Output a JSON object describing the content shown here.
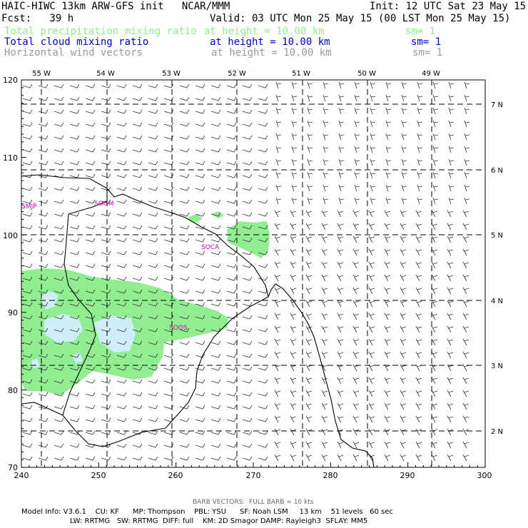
{
  "header": {
    "title": "HAIC-HIWC 13km ARW-GFS init   NCAR/MMM",
    "init": "Init: 12 UTC Sat 23 May 15",
    "fcst": "Fcst:   39 h",
    "valid": "Valid: 03 UTC Mon 25 May 15 (00 LST Mon 25 May 15)"
  },
  "fields": [
    {
      "name": "Total precipitation mixing ratio",
      "height": "at height = 10.00 km",
      "sm": "sm= 1",
      "color": "#90ee90"
    },
    {
      "name": "Total cloud mixing ratio",
      "height": "at height = 10.00 km",
      "sm": "sm= 1",
      "color": "#0000cc"
    },
    {
      "name": "Horizontal wind vectors",
      "height": "at height = 10.00 km",
      "sm": "sm= 1",
      "color": "#999999"
    }
  ],
  "map": {
    "lon_labels": [
      "55 W",
      "54 W",
      "53 W",
      "52 W",
      "51 W",
      "50 W",
      "49 W"
    ],
    "lat_labels": [
      "7 N",
      "6 N",
      "5 N",
      "4 N",
      "3 N",
      "2 N"
    ],
    "x_ticks": [
      "240",
      "250",
      "260",
      "270",
      "280",
      "290",
      "300"
    ],
    "y_ticks": [
      "120",
      "110",
      "100",
      "90",
      "80",
      "70"
    ],
    "stations": [
      "SMJP",
      "SOGM",
      "SOCA",
      "SOOS"
    ],
    "colors": {
      "precip": "#90ee90",
      "cloud": "#d0eefa",
      "station": "#cc00cc",
      "barb": "#333333"
    }
  },
  "footer": {
    "barb_note": "BARB VECTORS:  FULL BARB = 10 kts",
    "line1": "Model Info: V3.6.1    CU: KF      MP: Thompson    PBL: YSU      SF: Noah LSM     13 km    51 levels   60 sec",
    "line2": "LW: RRTMG   SW: RRTMG  DIFF: full    KM: 2D Smagor DAMP: Rayleigh3  SFLAY: MM5"
  }
}
